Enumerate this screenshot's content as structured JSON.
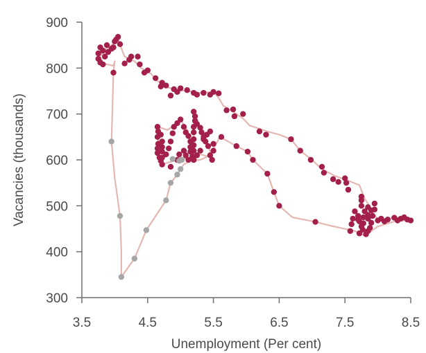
{
  "chart_data": {
    "type": "scatter",
    "title": "",
    "xlabel": "Unemployment (Per cent)",
    "ylabel": "Vacancies (thousands)",
    "xlim": [
      3.5,
      8.5
    ],
    "ylim": [
      300,
      900
    ],
    "xticks": [
      "3.5",
      "4.5",
      "5.5",
      "6.5",
      "7.5",
      "8.5"
    ],
    "yticks": [
      "300",
      "400",
      "500",
      "600",
      "700",
      "800",
      "900"
    ],
    "grid": false,
    "legend": "none",
    "colors": {
      "line": "#e4b7b1",
      "red": "#a3204a",
      "grey": "#a6a6a6",
      "axis": "#6f6f6f",
      "text": "#4a4a4a"
    },
    "series": [
      {
        "color": "red",
        "points": [
          [
            8.5,
            468
          ],
          [
            8.45,
            470
          ],
          [
            8.4,
            475
          ],
          [
            8.35,
            472
          ],
          [
            8.3,
            468
          ],
          [
            8.25,
            474
          ],
          [
            8.15,
            470
          ],
          [
            8.1,
            466
          ],
          [
            8.05,
            472
          ],
          [
            8.0,
            468
          ],
          [
            7.95,
            505
          ],
          [
            7.95,
            492
          ],
          [
            7.92,
            478
          ],
          [
            7.9,
            490
          ],
          [
            7.9,
            463
          ],
          [
            7.88,
            452
          ],
          [
            7.85,
            497
          ],
          [
            7.85,
            480
          ],
          [
            7.85,
            472
          ],
          [
            7.85,
            445
          ],
          [
            7.82,
            438
          ],
          [
            7.8,
            488
          ],
          [
            7.78,
            475
          ],
          [
            7.78,
            462
          ],
          [
            7.77,
            448
          ],
          [
            7.75,
            455
          ],
          [
            7.75,
            500
          ],
          [
            7.75,
            512
          ],
          [
            7.75,
            520
          ],
          [
            7.72,
            466
          ],
          [
            7.7,
            478
          ],
          [
            7.72,
            440
          ],
          [
            7.7,
            470
          ],
          [
            7.65,
            488
          ],
          [
            7.62,
            472
          ],
          [
            7.6,
            460
          ],
          [
            7.58,
            445
          ],
          [
            7.55,
            535
          ],
          [
            7.52,
            550
          ],
          [
            7.5,
            560
          ],
          [
            7.32,
            558
          ],
          [
            7.18,
            572
          ],
          [
            7.15,
            585
          ],
          [
            7.05,
            465
          ],
          [
            6.98,
            600
          ],
          [
            6.82,
            620
          ],
          [
            6.68,
            645
          ],
          [
            6.5,
            500
          ],
          [
            6.42,
            530
          ],
          [
            6.32,
            570
          ],
          [
            6.1,
            600
          ],
          [
            6.02,
            618
          ],
          [
            5.85,
            630
          ],
          [
            5.62,
            650
          ],
          [
            5.45,
            662
          ],
          [
            5.4,
            655
          ],
          [
            5.35,
            645
          ],
          [
            5.3,
            620
          ],
          [
            5.25,
            610
          ],
          [
            5.2,
            600
          ],
          [
            5.12,
            600
          ],
          [
            5.08,
            610
          ],
          [
            5.05,
            620
          ],
          [
            4.98,
            612
          ],
          [
            4.95,
            600
          ],
          [
            4.85,
            585
          ],
          [
            4.72,
            590
          ],
          [
            4.68,
            605
          ],
          [
            4.65,
            615
          ],
          [
            4.65,
            625
          ],
          [
            4.66,
            635
          ],
          [
            4.65,
            650
          ],
          [
            4.66,
            662
          ],
          [
            4.65,
            672
          ],
          [
            4.7,
            655
          ],
          [
            4.72,
            640
          ],
          [
            4.72,
            628
          ],
          [
            4.72,
            618
          ],
          [
            4.72,
            605
          ],
          [
            4.7,
            598
          ],
          [
            4.78,
            612
          ],
          [
            4.82,
            625
          ],
          [
            4.85,
            640
          ],
          [
            4.88,
            658
          ],
          [
            4.9,
            672
          ],
          [
            4.95,
            680
          ],
          [
            5.0,
            688
          ],
          [
            5.05,
            672
          ],
          [
            5.08,
            660
          ],
          [
            5.12,
            652
          ],
          [
            5.15,
            640
          ],
          [
            5.15,
            628
          ],
          [
            5.15,
            618
          ],
          [
            5.18,
            608
          ],
          [
            5.2,
            600
          ],
          [
            5.2,
            620
          ],
          [
            5.2,
            632
          ],
          [
            5.2,
            645
          ],
          [
            5.2,
            660
          ],
          [
            5.2,
            672
          ],
          [
            5.22,
            685
          ],
          [
            5.22,
            695
          ],
          [
            5.2,
            705
          ],
          [
            5.25,
            678
          ],
          [
            5.3,
            670
          ],
          [
            5.32,
            660
          ],
          [
            5.35,
            650
          ],
          [
            5.38,
            640
          ],
          [
            5.42,
            630
          ],
          [
            5.45,
            610
          ],
          [
            5.48,
            600
          ],
          [
            5.5,
            620
          ],
          [
            5.5,
            635
          ],
          [
            5.58,
            745
          ],
          [
            5.5,
            748
          ],
          [
            5.45,
            742
          ],
          [
            5.35,
            746
          ],
          [
            5.25,
            742
          ],
          [
            5.2,
            746
          ],
          [
            5.1,
            752
          ],
          [
            5.0,
            756
          ],
          [
            4.95,
            748
          ],
          [
            4.9,
            754
          ],
          [
            4.85,
            740
          ],
          [
            4.78,
            762
          ],
          [
            4.72,
            768
          ],
          [
            4.7,
            760
          ],
          [
            4.62,
            778
          ],
          [
            4.5,
            795
          ],
          [
            4.45,
            790
          ],
          [
            4.38,
            808
          ],
          [
            4.35,
            825
          ],
          [
            4.25,
            825
          ],
          [
            4.22,
            818
          ],
          [
            4.15,
            810
          ],
          [
            4.08,
            852
          ],
          [
            4.05,
            868
          ],
          [
            4.02,
            862
          ],
          [
            4.0,
            858
          ],
          [
            3.98,
            845
          ],
          [
            3.95,
            842
          ],
          [
            3.9,
            835
          ],
          [
            3.88,
            850
          ],
          [
            3.85,
            825
          ],
          [
            3.82,
            838
          ],
          [
            3.78,
            845
          ],
          [
            3.75,
            832
          ],
          [
            3.75,
            820
          ],
          [
            3.78,
            812
          ],
          [
            3.82,
            808
          ],
          [
            3.98,
            790
          ],
          [
            5.7,
            708
          ],
          [
            5.95,
            700
          ],
          [
            5.82,
            695
          ],
          [
            5.8,
            710
          ],
          [
            6.2,
            662
          ],
          [
            6.3,
            655
          ],
          [
            7.4,
            552
          ],
          [
            7.72,
            440
          ]
        ]
      },
      {
        "color": "grey",
        "points": [
          [
            4.1,
            345
          ],
          [
            4.3,
            385
          ],
          [
            4.48,
            447
          ],
          [
            4.78,
            512
          ],
          [
            4.85,
            550
          ],
          [
            4.95,
            568
          ],
          [
            5.0,
            580
          ],
          [
            4.98,
            598
          ],
          [
            4.88,
            602
          ],
          [
            5.02,
            600
          ],
          [
            4.08,
            478
          ],
          [
            3.95,
            640
          ]
        ]
      }
    ],
    "lines": [
      [
        [
          4.1,
          345
        ],
        [
          4.3,
          385
        ],
        [
          4.48,
          447
        ],
        [
          4.78,
          512
        ],
        [
          4.85,
          550
        ],
        [
          4.95,
          568
        ],
        [
          5.0,
          580
        ],
        [
          5.05,
          590
        ],
        [
          5.15,
          598
        ],
        [
          5.3,
          600
        ],
        [
          5.45,
          610
        ],
        [
          5.5,
          625
        ],
        [
          5.6,
          650
        ],
        [
          5.85,
          630
        ],
        [
          6.02,
          618
        ],
        [
          6.1,
          600
        ],
        [
          6.32,
          570
        ],
        [
          6.42,
          530
        ],
        [
          6.5,
          500
        ],
        [
          6.7,
          475
        ],
        [
          7.05,
          465
        ],
        [
          7.3,
          456
        ],
        [
          7.65,
          445
        ],
        [
          7.8,
          435
        ],
        [
          8.0,
          455
        ],
        [
          8.3,
          468
        ],
        [
          8.5,
          468
        ]
      ],
      [
        [
          8.5,
          468
        ],
        [
          8.3,
          474
        ],
        [
          8.0,
          470
        ],
        [
          7.9,
          490
        ],
        [
          7.85,
          505
        ],
        [
          7.8,
          515
        ],
        [
          7.72,
          545
        ],
        [
          7.55,
          555
        ],
        [
          7.35,
          565
        ],
        [
          7.15,
          580
        ],
        [
          7.0,
          600
        ],
        [
          6.82,
          620
        ],
        [
          6.68,
          645
        ],
        [
          6.5,
          655
        ],
        [
          6.32,
          662
        ],
        [
          6.2,
          668
        ],
        [
          6.05,
          675
        ],
        [
          5.95,
          690
        ],
        [
          5.8,
          705
        ],
        [
          5.65,
          718
        ],
        [
          5.58,
          735
        ],
        [
          5.5,
          748
        ],
        [
          5.3,
          746
        ],
        [
          5.1,
          750
        ],
        [
          4.95,
          752
        ],
        [
          4.8,
          758
        ],
        [
          4.65,
          772
        ],
        [
          4.55,
          788
        ],
        [
          4.4,
          800
        ],
        [
          4.3,
          815
        ],
        [
          4.15,
          825
        ],
        [
          4.05,
          862
        ],
        [
          3.95,
          850
        ],
        [
          3.85,
          840
        ],
        [
          3.78,
          825
        ],
        [
          3.82,
          810
        ],
        [
          3.98,
          805
        ],
        [
          4.0,
          815
        ],
        [
          3.98,
          790
        ],
        [
          3.95,
          640
        ],
        [
          4.0,
          560
        ],
        [
          4.08,
          478
        ],
        [
          4.1,
          400
        ],
        [
          4.1,
          345
        ]
      ],
      [
        [
          4.72,
          590
        ],
        [
          4.68,
          605
        ],
        [
          4.66,
          625
        ],
        [
          4.66,
          650
        ],
        [
          4.66,
          672
        ],
        [
          4.8,
          665
        ],
        [
          4.9,
          675
        ],
        [
          5.0,
          688
        ],
        [
          5.1,
          665
        ],
        [
          5.15,
          640
        ],
        [
          5.2,
          610
        ],
        [
          5.2,
          640
        ],
        [
          5.2,
          670
        ],
        [
          5.22,
          700
        ],
        [
          5.3,
          668
        ],
        [
          5.4,
          640
        ],
        [
          5.48,
          605
        ],
        [
          5.3,
          612
        ],
        [
          5.15,
          600
        ],
        [
          5.0,
          606
        ],
        [
          4.9,
          598
        ],
        [
          4.72,
          590
        ]
      ]
    ]
  }
}
